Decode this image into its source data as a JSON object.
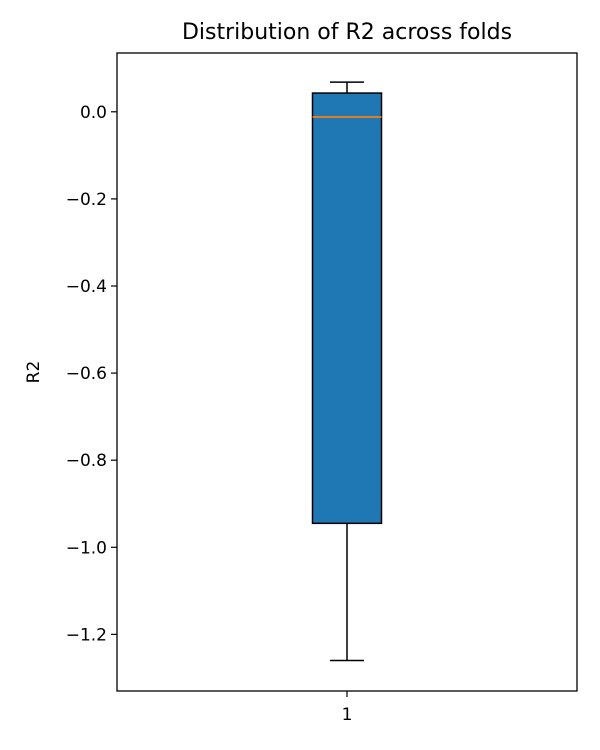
{
  "chart_data": {
    "type": "box",
    "title": "Distribution of R2 across folds",
    "xlabel": "",
    "ylabel": "R2",
    "ylim": [
      -1.33,
      0.135
    ],
    "yticks": [
      0.0,
      -0.2,
      -0.4,
      -0.6,
      -0.8,
      -1.0,
      -1.2
    ],
    "ytick_labels": [
      "0.0",
      "−0.2",
      "−0.4",
      "−0.6",
      "−0.8",
      "−1.0",
      "−1.2"
    ],
    "categories": [
      "1"
    ],
    "boxes": [
      {
        "category": "1",
        "whisker_low": -1.26,
        "q1": -0.945,
        "median": -0.012,
        "q3": 0.043,
        "whisker_high": 0.068
      }
    ],
    "grid": false,
    "colors": {
      "box_fill": "#1f77b4",
      "median_line": "#ff7f0e",
      "outline": "#000000"
    }
  }
}
